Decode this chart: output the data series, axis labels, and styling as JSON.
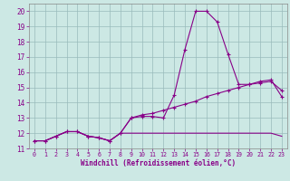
{
  "xlabel": "Windchill (Refroidissement éolien,°C)",
  "bg_color": "#cce8e4",
  "line_color": "#880088",
  "grid_color": "#99bbbb",
  "xlim": [
    -0.5,
    23.5
  ],
  "ylim": [
    11.0,
    20.5
  ],
  "yticks": [
    11,
    12,
    13,
    14,
    15,
    16,
    17,
    18,
    19,
    20
  ],
  "xticks": [
    0,
    1,
    2,
    3,
    4,
    5,
    6,
    7,
    8,
    9,
    10,
    11,
    12,
    13,
    14,
    15,
    16,
    17,
    18,
    19,
    20,
    21,
    22,
    23
  ],
  "series1_x": [
    0,
    1,
    2,
    3,
    4,
    5,
    6,
    7,
    8,
    9,
    10,
    11,
    12,
    13,
    14,
    15,
    16,
    17,
    18,
    19,
    20,
    21,
    22,
    23
  ],
  "series1_y": [
    11.5,
    11.5,
    11.8,
    12.1,
    12.1,
    11.8,
    11.7,
    11.5,
    12.0,
    13.0,
    13.1,
    13.1,
    13.0,
    14.5,
    17.5,
    20.0,
    20.0,
    19.3,
    17.2,
    15.2,
    15.2,
    15.4,
    15.5,
    14.4
  ],
  "series2_x": [
    0,
    1,
    2,
    3,
    4,
    5,
    6,
    7,
    8,
    9,
    10,
    11,
    12,
    13,
    14,
    15,
    16,
    17,
    18,
    19,
    20,
    21,
    22,
    23
  ],
  "series2_y": [
    11.5,
    11.5,
    11.8,
    12.1,
    12.1,
    11.8,
    11.7,
    11.5,
    12.0,
    13.0,
    13.2,
    13.3,
    13.5,
    13.7,
    13.9,
    14.1,
    14.4,
    14.6,
    14.8,
    15.0,
    15.2,
    15.3,
    15.4,
    14.8
  ],
  "series3_x": [
    0,
    1,
    2,
    3,
    4,
    5,
    6,
    7,
    8,
    9,
    10,
    11,
    12,
    13,
    14,
    15,
    16,
    17,
    18,
    19,
    20,
    21,
    22,
    23
  ],
  "series3_y": [
    11.5,
    11.5,
    11.8,
    12.1,
    12.1,
    11.8,
    11.7,
    11.5,
    12.0,
    12.0,
    12.0,
    12.0,
    12.0,
    12.0,
    12.0,
    12.0,
    12.0,
    12.0,
    12.0,
    12.0,
    12.0,
    12.0,
    12.0,
    11.8
  ]
}
